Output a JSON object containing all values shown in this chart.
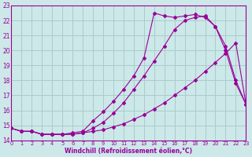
{
  "xlabel": "Windchill (Refroidissement éolien,°C)",
  "bg_color": "#cce8e8",
  "grid_color": "#aacccc",
  "line_color": "#990099",
  "x_min": 0,
  "x_max": 23,
  "y_min": 14,
  "y_max": 23,
  "series1_x": [
    0,
    1,
    2,
    3,
    4,
    5,
    6,
    7,
    8,
    9,
    10,
    11,
    12,
    13,
    14,
    15,
    16,
    17,
    18,
    19,
    20,
    21,
    22,
    23
  ],
  "series1_y": [
    14.8,
    14.6,
    14.6,
    14.4,
    14.4,
    14.4,
    14.4,
    14.5,
    14.6,
    14.7,
    14.9,
    15.1,
    15.4,
    15.7,
    16.1,
    16.5,
    17.0,
    17.5,
    18.0,
    18.6,
    19.2,
    19.8,
    20.5,
    16.4
  ],
  "series2_x": [
    0,
    1,
    2,
    3,
    4,
    5,
    6,
    7,
    8,
    9,
    10,
    11,
    12,
    13,
    14,
    15,
    16,
    17,
    18,
    19,
    20,
    21,
    22,
    23
  ],
  "series2_y": [
    14.8,
    14.6,
    14.6,
    14.4,
    14.4,
    14.4,
    14.4,
    14.5,
    14.8,
    15.2,
    15.8,
    16.5,
    17.4,
    18.3,
    19.3,
    20.3,
    21.4,
    22.0,
    22.2,
    22.3,
    21.6,
    20.3,
    18.0,
    16.4
  ],
  "series3_x": [
    0,
    1,
    2,
    3,
    4,
    5,
    6,
    7,
    8,
    9,
    10,
    11,
    12,
    13,
    14,
    15,
    16,
    17,
    18,
    19,
    20,
    21,
    22,
    23
  ],
  "series3_y": [
    14.8,
    14.6,
    14.6,
    14.4,
    14.4,
    14.4,
    14.5,
    14.6,
    15.3,
    15.9,
    16.6,
    17.4,
    18.3,
    19.5,
    22.5,
    22.3,
    22.2,
    22.3,
    22.4,
    22.2,
    21.6,
    20.0,
    17.8,
    16.4
  ],
  "yticks": [
    14,
    15,
    16,
    17,
    18,
    19,
    20,
    21,
    22,
    23
  ],
  "xticks": [
    0,
    1,
    2,
    3,
    4,
    5,
    6,
    7,
    8,
    9,
    10,
    11,
    12,
    13,
    14,
    15,
    16,
    17,
    18,
    19,
    20,
    21,
    22,
    23
  ]
}
